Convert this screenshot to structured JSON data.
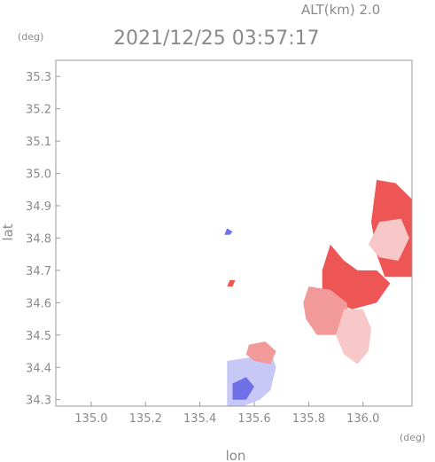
{
  "header": {
    "altitude_label": "ALT(km) 2.0",
    "timestamp": "2021/12/25 03:57:17"
  },
  "chart_data": {
    "type": "heatmap",
    "title": "2021/12/25 03:57:17",
    "subtitle": "ALT(km) 2.0",
    "xlabel": "lon",
    "ylabel": "lat",
    "x_unit": "(deg)",
    "y_unit": "(deg)",
    "xlim": [
      134.87,
      136.18
    ],
    "ylim": [
      34.28,
      35.35
    ],
    "x_ticks": [
      135.0,
      135.2,
      135.4,
      135.6,
      135.8,
      136.0
    ],
    "x_tick_labels": [
      "135.0",
      "135.2",
      "135.4",
      "135.6",
      "135.8",
      "136.0"
    ],
    "y_ticks": [
      34.3,
      34.4,
      34.5,
      34.6,
      34.7,
      34.8,
      34.9,
      35.0,
      35.1,
      35.2,
      35.3
    ],
    "y_tick_labels": [
      "34.3",
      "34.4",
      "34.5",
      "34.6",
      "34.7",
      "34.8",
      "34.9",
      "35.0",
      "35.1",
      "35.2",
      "35.3"
    ],
    "grid": false,
    "colors": {
      "positive_strong": "#ee5555",
      "positive_medium": "#f29a9a",
      "positive_light": "#f8c8c8",
      "negative_strong": "#6f6fe8",
      "negative_light": "#c8c8f6"
    },
    "regions": [
      {
        "name": "northeast-positive-cell",
        "sign": "positive",
        "level": "strong",
        "polygon": [
          [
            136.05,
            34.98
          ],
          [
            136.12,
            34.97
          ],
          [
            136.18,
            34.92
          ],
          [
            136.18,
            34.68
          ],
          [
            136.08,
            34.68
          ],
          [
            136.05,
            34.75
          ],
          [
            136.03,
            34.85
          ]
        ]
      },
      {
        "name": "northeast-light-core",
        "sign": "positive",
        "level": "light",
        "polygon": [
          [
            136.06,
            34.85
          ],
          [
            136.14,
            34.86
          ],
          [
            136.17,
            34.8
          ],
          [
            136.13,
            34.73
          ],
          [
            136.06,
            34.74
          ],
          [
            136.02,
            34.78
          ]
        ]
      },
      {
        "name": "central-positive-band",
        "sign": "positive",
        "level": "strong",
        "polygon": [
          [
            135.88,
            34.78
          ],
          [
            135.93,
            34.73
          ],
          [
            135.98,
            34.7
          ],
          [
            136.05,
            34.7
          ],
          [
            136.1,
            34.66
          ],
          [
            136.05,
            34.6
          ],
          [
            135.96,
            34.58
          ],
          [
            135.9,
            34.6
          ],
          [
            135.85,
            34.64
          ],
          [
            135.85,
            34.7
          ]
        ]
      },
      {
        "name": "western-positive-patch",
        "sign": "positive",
        "level": "medium",
        "polygon": [
          [
            135.8,
            34.65
          ],
          [
            135.88,
            34.64
          ],
          [
            135.94,
            34.6
          ],
          [
            135.95,
            34.54
          ],
          [
            135.9,
            34.5
          ],
          [
            135.83,
            34.5
          ],
          [
            135.79,
            34.55
          ],
          [
            135.78,
            34.6
          ]
        ]
      },
      {
        "name": "southern-positive-patch",
        "sign": "positive",
        "level": "light",
        "polygon": [
          [
            135.93,
            34.58
          ],
          [
            136.0,
            34.58
          ],
          [
            136.03,
            34.52
          ],
          [
            136.02,
            34.45
          ],
          [
            135.98,
            34.41
          ],
          [
            135.93,
            34.44
          ],
          [
            135.9,
            34.5
          ]
        ]
      },
      {
        "name": "southwest-negative-cell",
        "sign": "negative",
        "level": "light",
        "polygon": [
          [
            135.5,
            34.42
          ],
          [
            135.58,
            34.43
          ],
          [
            135.66,
            34.45
          ],
          [
            135.68,
            34.4
          ],
          [
            135.66,
            34.33
          ],
          [
            135.62,
            34.3
          ],
          [
            135.56,
            34.28
          ],
          [
            135.5,
            34.28
          ]
        ]
      },
      {
        "name": "southwest-negative-core",
        "sign": "negative",
        "level": "strong",
        "polygon": [
          [
            135.52,
            34.35
          ],
          [
            135.57,
            34.37
          ],
          [
            135.6,
            34.34
          ],
          [
            135.57,
            34.3
          ],
          [
            135.52,
            34.3
          ]
        ]
      },
      {
        "name": "southwest-positive-streak",
        "sign": "positive",
        "level": "medium",
        "polygon": [
          [
            135.58,
            34.47
          ],
          [
            135.64,
            34.48
          ],
          [
            135.68,
            34.45
          ],
          [
            135.66,
            34.41
          ],
          [
            135.6,
            34.42
          ],
          [
            135.57,
            34.44
          ]
        ]
      },
      {
        "name": "small-negative-echo",
        "sign": "negative",
        "level": "strong",
        "polygon": [
          [
            135.5,
            34.83
          ],
          [
            135.52,
            34.82
          ],
          [
            135.51,
            34.81
          ],
          [
            135.49,
            34.81
          ]
        ]
      },
      {
        "name": "small-positive-echo",
        "sign": "positive",
        "level": "strong",
        "polygon": [
          [
            135.51,
            34.67
          ],
          [
            135.53,
            34.67
          ],
          [
            135.52,
            34.65
          ],
          [
            135.5,
            34.65
          ]
        ]
      }
    ]
  }
}
